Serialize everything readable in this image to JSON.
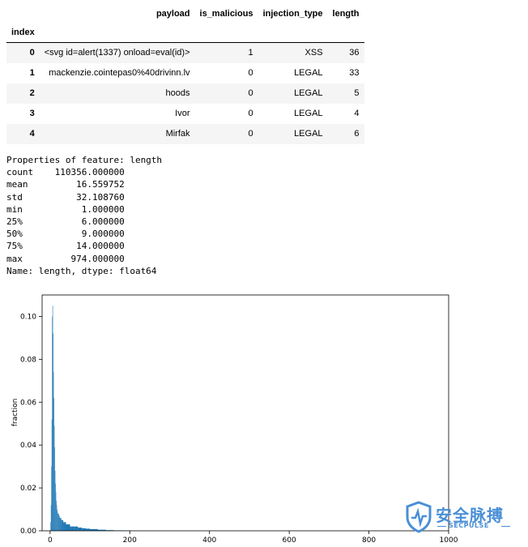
{
  "dataframe": {
    "columns": [
      "payload",
      "is_malicious",
      "injection_type",
      "length"
    ],
    "index_name": "index",
    "rows": [
      {
        "index": "0",
        "payload": "<svg id=alert(1337) onload=eval(id)>",
        "is_malicious": "1",
        "injection_type": "XSS",
        "length": "36"
      },
      {
        "index": "1",
        "payload": "mackenzie.cointepas0%40drivinn.lv",
        "is_malicious": "0",
        "injection_type": "LEGAL",
        "length": "33"
      },
      {
        "index": "2",
        "payload": "hoods",
        "is_malicious": "0",
        "injection_type": "LEGAL",
        "length": "5"
      },
      {
        "index": "3",
        "payload": "Ivor",
        "is_malicious": "0",
        "injection_type": "LEGAL",
        "length": "4"
      },
      {
        "index": "4",
        "payload": "Mirfak",
        "is_malicious": "0",
        "injection_type": "LEGAL",
        "length": "6"
      }
    ]
  },
  "output_lines": [
    "Properties of feature: length",
    "count    110356.000000",
    "mean         16.559752",
    "std          32.108760",
    "min           1.000000",
    "25%           6.000000",
    "50%           9.000000",
    "75%          14.000000",
    "max         974.000000",
    "Name: length, dtype: float64"
  ],
  "chart_data": {
    "type": "bar",
    "title": "",
    "xlabel": "",
    "ylabel": "fraction",
    "xlim": [
      -20,
      1000
    ],
    "ylim": [
      0,
      0.11
    ],
    "x_ticks": [
      0,
      200,
      400,
      600,
      800,
      1000
    ],
    "y_ticks": [
      0.0,
      0.02,
      0.04,
      0.06,
      0.08,
      0.1
    ],
    "y_tick_labels": [
      "0.00",
      "0.02",
      "0.04",
      "0.06",
      "0.08",
      "0.10"
    ],
    "grid": false,
    "bar_color": "#1f77b4",
    "x": [
      1,
      2,
      3,
      4,
      5,
      6,
      7,
      8,
      9,
      10,
      11,
      12,
      13,
      14,
      15,
      16,
      17,
      18,
      19,
      20,
      22,
      24,
      26,
      28,
      30,
      33,
      36,
      40,
      45,
      50,
      55,
      60,
      70,
      80,
      90,
      100,
      120,
      140,
      160,
      180
    ],
    "values": [
      0.004,
      0.012,
      0.03,
      0.052,
      0.1,
      0.105,
      0.092,
      0.074,
      0.062,
      0.049,
      0.039,
      0.028,
      0.022,
      0.018,
      0.014,
      0.012,
      0.01,
      0.009,
      0.008,
      0.008,
      0.007,
      0.006,
      0.006,
      0.005,
      0.005,
      0.004,
      0.004,
      0.003,
      0.003,
      0.002,
      0.002,
      0.002,
      0.0015,
      0.0012,
      0.001,
      0.0008,
      0.0005,
      0.0003,
      0.0002,
      0.0001
    ]
  },
  "watermark": {
    "title": "安全脉搏",
    "subtitle": "SECPULSE",
    "accent": "#4a8fd6"
  }
}
